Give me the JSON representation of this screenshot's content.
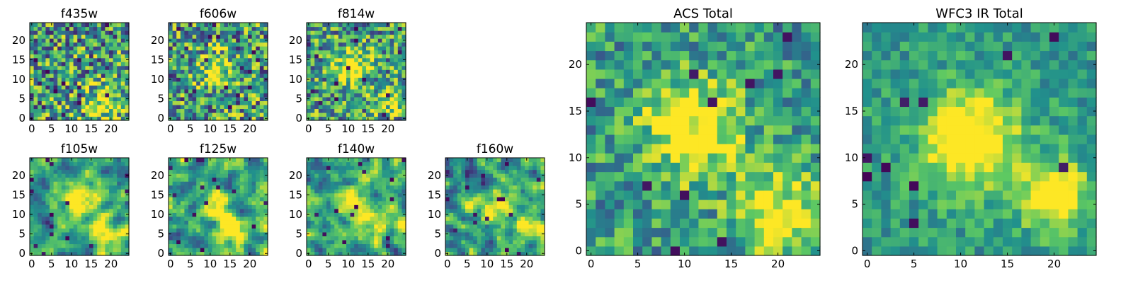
{
  "colormap": [
    "#440154",
    "#3b528b",
    "#21918c",
    "#5ec962",
    "#fde725"
  ],
  "chart_data": [
    {
      "id": "f435w",
      "type": "heatmap",
      "title": "f435w",
      "grid": false,
      "xlim": [
        0,
        24
      ],
      "ylim": [
        0,
        24
      ],
      "xticks": [
        "0",
        "5",
        "10",
        "15",
        "20"
      ],
      "yticks": [
        "0",
        "5",
        "10",
        "15",
        "20"
      ],
      "texture": "noise",
      "blobs": [
        [
          18,
          4,
          3,
          0.4
        ]
      ],
      "noise": 0.55
    },
    {
      "id": "f606w",
      "type": "heatmap",
      "title": "f606w",
      "grid": false,
      "xlim": [
        0,
        24
      ],
      "ylim": [
        0,
        24
      ],
      "xticks": [
        "0",
        "5",
        "10",
        "15",
        "20"
      ],
      "yticks": [
        "0",
        "5",
        "10",
        "15",
        "20"
      ],
      "texture": "noise",
      "blobs": [
        [
          11,
          12,
          3,
          0.4
        ]
      ],
      "noise": 0.55
    },
    {
      "id": "f814w",
      "type": "heatmap",
      "title": "f814w",
      "grid": false,
      "xlim": [
        0,
        24
      ],
      "ylim": [
        0,
        24
      ],
      "xticks": [
        "0",
        "5",
        "10",
        "15",
        "20"
      ],
      "yticks": [
        "0",
        "5",
        "10",
        "15",
        "20"
      ],
      "texture": "noise",
      "blobs": [
        [
          11,
          13,
          3,
          0.6
        ],
        [
          20,
          5,
          2.5,
          0.4
        ]
      ],
      "noise": 0.5
    },
    {
      "id": "f105w",
      "type": "heatmap",
      "title": "f105w",
      "grid": false,
      "xlim": [
        0,
        24
      ],
      "ylim": [
        0,
        24
      ],
      "xticks": [
        "0",
        "5",
        "10",
        "15",
        "20"
      ],
      "yticks": [
        "0",
        "5",
        "10",
        "15",
        "20"
      ],
      "texture": "smooth",
      "blobs": [
        [
          11,
          13,
          3,
          0.6
        ],
        [
          18,
          5,
          3,
          0.5
        ]
      ],
      "noise": 0.4
    },
    {
      "id": "f125w",
      "type": "heatmap",
      "title": "f125w",
      "grid": false,
      "xlim": [
        0,
        24
      ],
      "ylim": [
        0,
        24
      ],
      "xticks": [
        "0",
        "5",
        "10",
        "15",
        "20"
      ],
      "yticks": [
        "0",
        "5",
        "10",
        "15",
        "20"
      ],
      "texture": "smooth",
      "blobs": [
        [
          11,
          12,
          3,
          0.5
        ],
        [
          16,
          6,
          3,
          0.5
        ]
      ],
      "noise": 0.45
    },
    {
      "id": "f140w",
      "type": "heatmap",
      "title": "f140w",
      "grid": false,
      "xlim": [
        0,
        24
      ],
      "ylim": [
        0,
        24
      ],
      "xticks": [
        "0",
        "5",
        "10",
        "15",
        "20"
      ],
      "yticks": [
        "0",
        "5",
        "10",
        "15",
        "20"
      ],
      "texture": "smooth",
      "blobs": [
        [
          11,
          13,
          3,
          0.6
        ],
        [
          19,
          7,
          3,
          0.4
        ]
      ],
      "noise": 0.45
    },
    {
      "id": "f160w",
      "type": "heatmap",
      "title": "f160w",
      "grid": false,
      "xlim": [
        0,
        24
      ],
      "ylim": [
        0,
        24
      ],
      "xticks": [
        "0",
        "5",
        "10",
        "15",
        "20"
      ],
      "yticks": [
        "0",
        "5",
        "10",
        "15",
        "20"
      ],
      "texture": "smooth",
      "blobs": [
        [
          12,
          12,
          3,
          0.5
        ],
        [
          21,
          7,
          3,
          0.5
        ]
      ],
      "noise": 0.45
    },
    {
      "id": "acs_total",
      "type": "heatmap",
      "title": "ACS Total",
      "grid": false,
      "xlim": [
        0,
        24
      ],
      "ylim": [
        0,
        24
      ],
      "xticks": [
        "0",
        "5",
        "10",
        "15",
        "20"
      ],
      "yticks": [
        "0",
        "5",
        "10",
        "15",
        "20"
      ],
      "texture": "blocky",
      "blobs": [
        [
          11,
          13,
          3.5,
          0.6
        ],
        [
          20,
          4,
          3,
          0.5
        ]
      ],
      "noise": 0.35
    },
    {
      "id": "wfc3_ir_total",
      "type": "heatmap",
      "title": "WFC3 IR Total",
      "grid": false,
      "xlim": [
        0,
        24
      ],
      "ylim": [
        0,
        24
      ],
      "xticks": [
        "0",
        "5",
        "10",
        "15",
        "20"
      ],
      "yticks": [
        "0",
        "5",
        "10",
        "15",
        "20"
      ],
      "texture": "blocky",
      "blobs": [
        [
          11,
          12,
          3.5,
          0.7
        ],
        [
          20,
          6,
          2.5,
          0.6
        ]
      ],
      "noise": 0.22
    }
  ]
}
